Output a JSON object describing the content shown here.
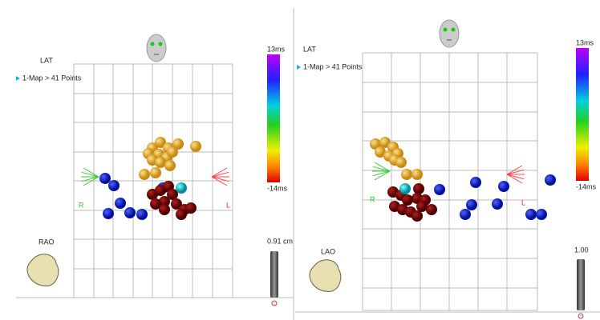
{
  "panels": [
    {
      "label": "LAT",
      "map": "1-Map > 41 Points",
      "scale_max": "13ms",
      "scale_min": "-14ms",
      "axis_right": "R",
      "axis_left": "L",
      "view": "RAO",
      "zoom": "0.91 cm"
    },
    {
      "label": "LAT",
      "map": "1-Map > 41 Points",
      "scale_max": "13ms",
      "scale_min": "-14ms",
      "axis_right": "R",
      "axis_left": "L",
      "view": "LAO",
      "zoom": "1.00"
    }
  ]
}
